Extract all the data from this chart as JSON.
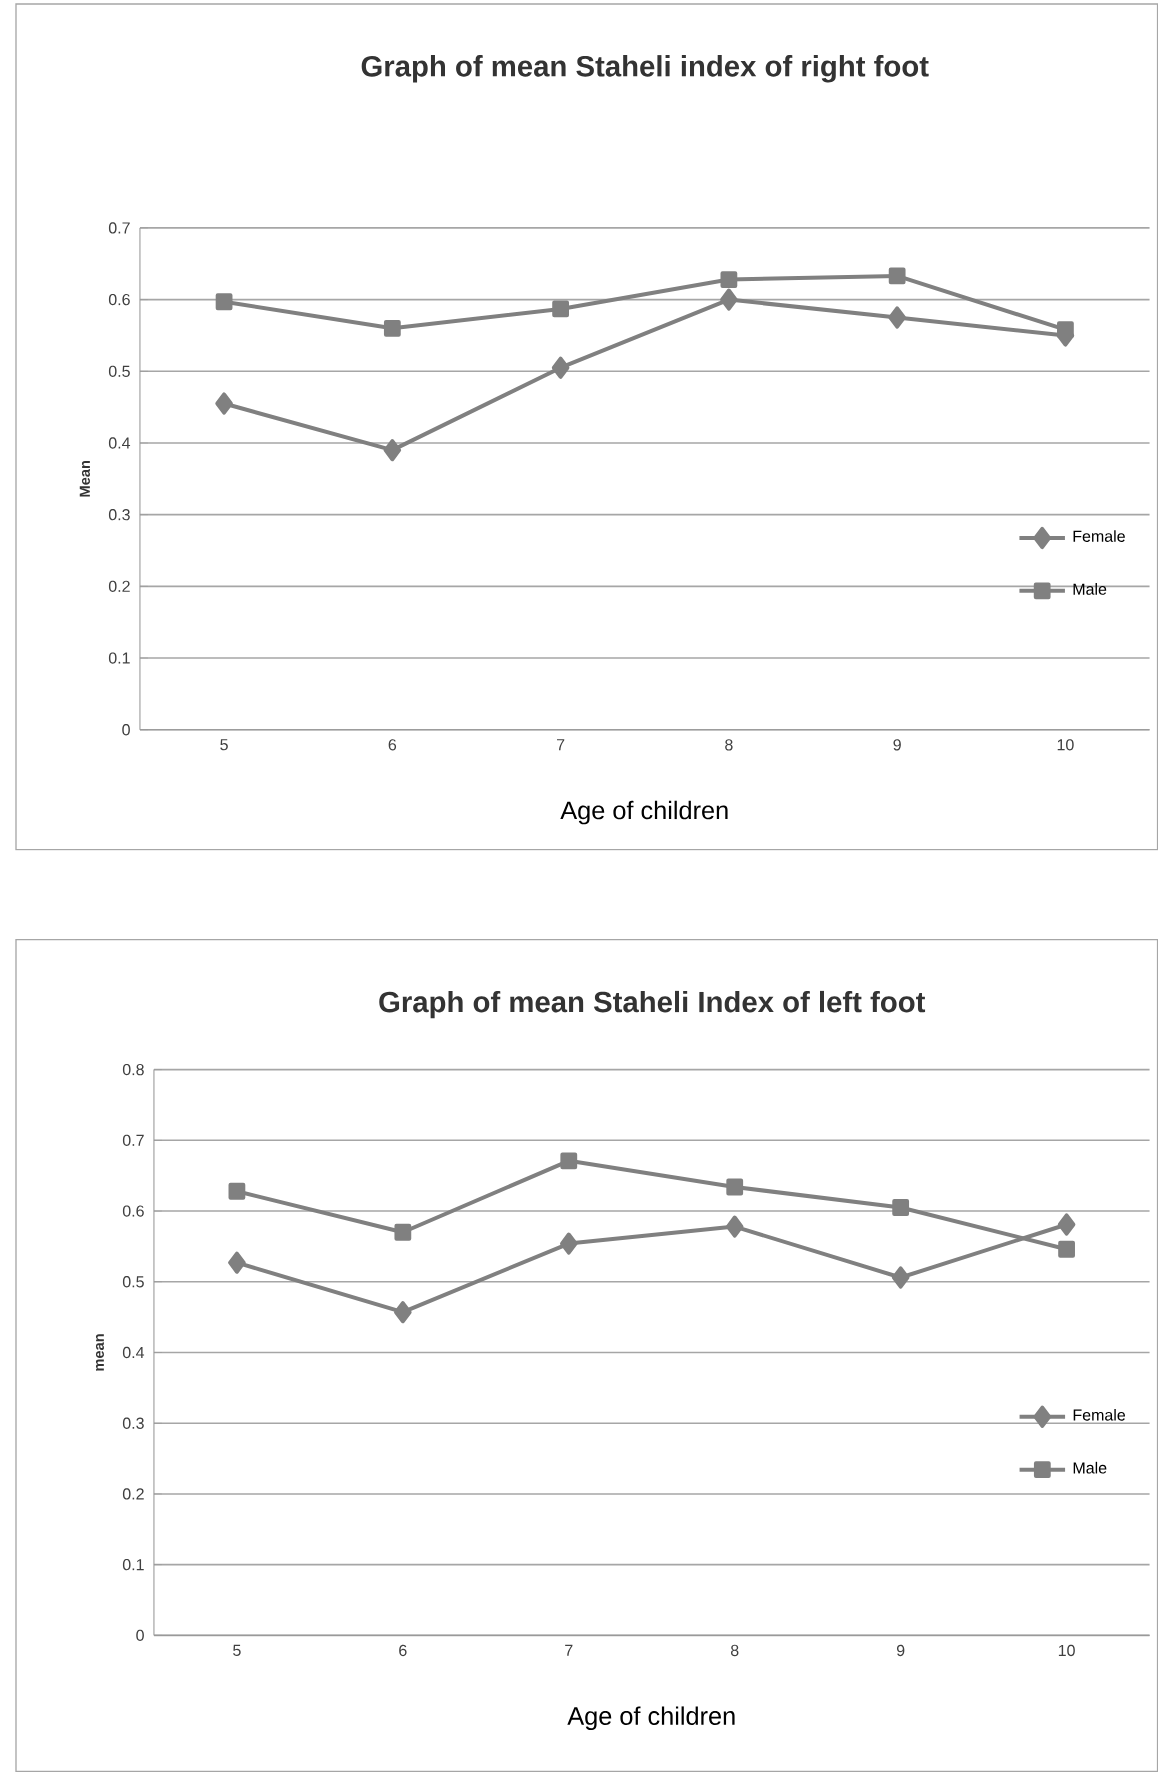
{
  "chart_data": [
    {
      "type": "line",
      "title": "Graph of mean Staheli index of right foot",
      "xlabel": "Age of children",
      "ylabel": "Mean",
      "categories": [
        "5",
        "6",
        "7",
        "8",
        "9",
        "10"
      ],
      "series": [
        {
          "name": "Female",
          "color": "#808080",
          "marker": "diamond",
          "values": [
            0.455,
            0.39,
            0.505,
            0.6,
            0.575,
            0.55
          ]
        },
        {
          "name": "Male",
          "color": "#808080",
          "marker": "square",
          "values": [
            0.597,
            0.56,
            0.587,
            0.628,
            0.633,
            0.558
          ]
        }
      ],
      "ylim": [
        0,
        0.7
      ],
      "yticks": [
        0,
        0.1,
        0.2,
        0.3,
        0.4,
        0.5,
        0.6,
        0.7
      ],
      "grid": "y",
      "legend": "right"
    },
    {
      "type": "line",
      "title": "Graph of mean Staheli Index of left foot",
      "xlabel": "Age of children",
      "ylabel": "mean",
      "categories": [
        "5",
        "6",
        "7",
        "8",
        "9",
        "10"
      ],
      "series": [
        {
          "name": "Female",
          "color": "#808080",
          "marker": "diamond",
          "values": [
            0.527,
            0.457,
            0.554,
            0.578,
            0.506,
            0.581
          ]
        },
        {
          "name": "Male",
          "color": "#808080",
          "marker": "square",
          "values": [
            0.628,
            0.57,
            0.671,
            0.634,
            0.605,
            0.546
          ]
        }
      ],
      "ylim": [
        0,
        0.8
      ],
      "yticks": [
        0,
        0.1,
        0.2,
        0.3,
        0.4,
        0.5,
        0.6,
        0.7,
        0.8
      ],
      "grid": "y",
      "legend": "right"
    }
  ]
}
